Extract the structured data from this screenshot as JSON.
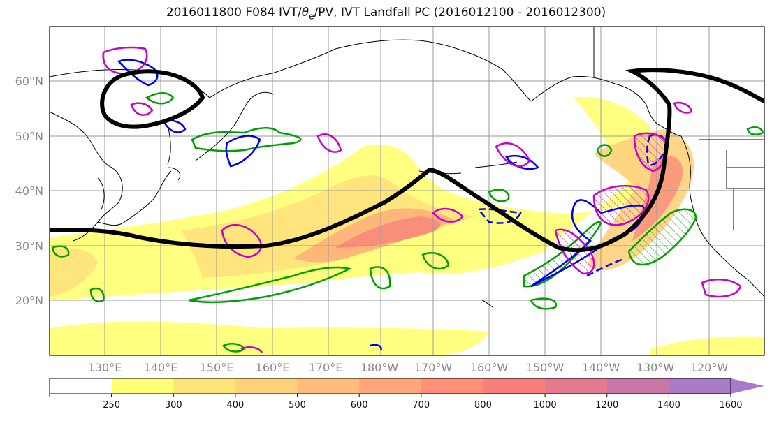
{
  "title": {
    "prefix": "2016011800 F084 IVT/",
    "theta": "θ",
    "theta_sub": "e",
    "suffix": "/PV, IVT Landfall PC (2016012100 - 2016012300)"
  },
  "lat_labels": [
    "60°N",
    "50°N",
    "40°N",
    "30°N",
    "20°N"
  ],
  "lon_labels": [
    "130°E",
    "140°E",
    "150°E",
    "160°E",
    "170°E",
    "180°W",
    "170°W",
    "160°W",
    "150°W",
    "140°W",
    "130°W",
    "120°W"
  ],
  "colorbar": {
    "ticks": [
      "250",
      "300",
      "400",
      "500",
      "600",
      "700",
      "800",
      "1000",
      "1200",
      "1400",
      "1600"
    ],
    "colors": [
      "#ffffff",
      "#ffff77",
      "#ffe47a",
      "#ffd17c",
      "#ffbc7d",
      "#ffa77a",
      "#ff9077",
      "#f87f7a",
      "#e47a8e",
      "#c978a6",
      "#a97bc6"
    ]
  },
  "legend_colors": {
    "ivt_fill_low": "#ffff80",
    "ivt_fill_high": "#f87a7a",
    "pv_contour": "#00a000",
    "theta_contour": "#0000ee",
    "landfall_contour": "#cc00cc",
    "pc_line": "#000000"
  }
}
